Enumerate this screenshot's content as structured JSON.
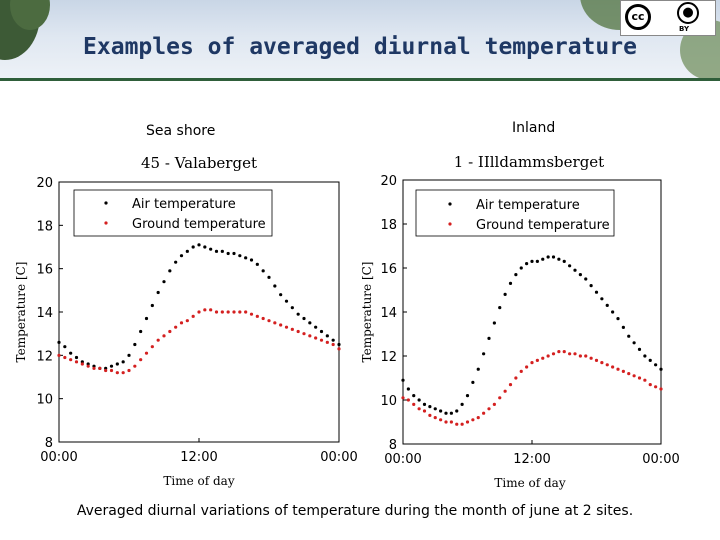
{
  "slide": {
    "title": "Examples of averaged diurnal temperature",
    "caption": "Averaged diurnal variations of temperature during the month of june at 2 sites.",
    "license_badge": {
      "icon": "cc-by-icon",
      "text": "BY"
    },
    "colors": {
      "title": "#1f3864",
      "banner_line": "#2f5e3a",
      "air": "#000000",
      "ground": "#d42020"
    }
  },
  "panels": [
    {
      "site_label": "Sea shore"
    },
    {
      "site_label": "Inland"
    }
  ],
  "chart_data": [
    {
      "type": "scatter",
      "title": "45 - Valaberget",
      "xlabel": "Time of day",
      "ylabel": "Temperature [C]",
      "xlim": [
        0,
        24
      ],
      "ylim": [
        8,
        20
      ],
      "x_ticks": [
        "00:00",
        "12:00",
        "00:00"
      ],
      "y_ticks": [
        "8",
        "10",
        "12",
        "14",
        "16",
        "18",
        "20"
      ],
      "legend_position": "top-left",
      "series": [
        {
          "name": "Air temperature",
          "color": "#000000",
          "x": [
            0,
            0.5,
            1,
            1.5,
            2,
            2.5,
            3,
            3.5,
            4,
            4.5,
            5,
            5.5,
            6,
            6.5,
            7,
            7.5,
            8,
            8.5,
            9,
            9.5,
            10,
            10.5,
            11,
            11.5,
            12,
            12.5,
            13,
            13.5,
            14,
            14.5,
            15,
            15.5,
            16,
            16.5,
            17,
            17.5,
            18,
            18.5,
            19,
            19.5,
            20,
            20.5,
            21,
            21.5,
            22,
            22.5,
            23,
            23.5,
            24
          ],
          "y": [
            12.6,
            12.4,
            12.1,
            11.9,
            11.7,
            11.6,
            11.5,
            11.4,
            11.4,
            11.5,
            11.6,
            11.7,
            12.0,
            12.5,
            13.1,
            13.7,
            14.3,
            14.9,
            15.4,
            15.9,
            16.3,
            16.6,
            16.8,
            17.0,
            17.1,
            17.0,
            16.9,
            16.8,
            16.8,
            16.7,
            16.7,
            16.6,
            16.5,
            16.4,
            16.2,
            15.9,
            15.6,
            15.2,
            14.8,
            14.5,
            14.2,
            13.9,
            13.7,
            13.5,
            13.3,
            13.1,
            12.9,
            12.7,
            12.5
          ]
        },
        {
          "name": "Ground temperature",
          "color": "#d42020",
          "x": [
            0,
            0.5,
            1,
            1.5,
            2,
            2.5,
            3,
            3.5,
            4,
            4.5,
            5,
            5.5,
            6,
            6.5,
            7,
            7.5,
            8,
            8.5,
            9,
            9.5,
            10,
            10.5,
            11,
            11.5,
            12,
            12.5,
            13,
            13.5,
            14,
            14.5,
            15,
            15.5,
            16,
            16.5,
            17,
            17.5,
            18,
            18.5,
            19,
            19.5,
            20,
            20.5,
            21,
            21.5,
            22,
            22.5,
            23,
            23.5,
            24
          ],
          "y": [
            12.0,
            11.9,
            11.8,
            11.7,
            11.6,
            11.5,
            11.4,
            11.4,
            11.3,
            11.3,
            11.2,
            11.2,
            11.3,
            11.5,
            11.8,
            12.1,
            12.4,
            12.7,
            12.9,
            13.1,
            13.3,
            13.5,
            13.6,
            13.8,
            14.0,
            14.1,
            14.1,
            14.0,
            14.0,
            14.0,
            14.0,
            14.0,
            14.0,
            13.9,
            13.8,
            13.7,
            13.6,
            13.5,
            13.4,
            13.3,
            13.2,
            13.1,
            13.0,
            12.9,
            12.8,
            12.7,
            12.6,
            12.5,
            12.3
          ]
        }
      ]
    },
    {
      "type": "scatter",
      "title": "1 - IIlldammsberget",
      "xlabel": "Time of day",
      "ylabel": "Temperature [C]",
      "xlim": [
        0,
        24
      ],
      "ylim": [
        8,
        20
      ],
      "x_ticks": [
        "00:00",
        "12:00",
        "00:00"
      ],
      "y_ticks": [
        "8",
        "10",
        "12",
        "14",
        "16",
        "18",
        "20"
      ],
      "legend_position": "top-left",
      "series": [
        {
          "name": "Air temperature",
          "color": "#000000",
          "x": [
            0,
            0.5,
            1,
            1.5,
            2,
            2.5,
            3,
            3.5,
            4,
            4.5,
            5,
            5.5,
            6,
            6.5,
            7,
            7.5,
            8,
            8.5,
            9,
            9.5,
            10,
            10.5,
            11,
            11.5,
            12,
            12.5,
            13,
            13.5,
            14,
            14.5,
            15,
            15.5,
            16,
            16.5,
            17,
            17.5,
            18,
            18.5,
            19,
            19.5,
            20,
            20.5,
            21,
            21.5,
            22,
            22.5,
            23,
            23.5,
            24
          ],
          "y": [
            10.9,
            10.5,
            10.2,
            10.0,
            9.8,
            9.7,
            9.6,
            9.5,
            9.4,
            9.4,
            9.5,
            9.8,
            10.2,
            10.8,
            11.4,
            12.1,
            12.8,
            13.5,
            14.2,
            14.8,
            15.3,
            15.7,
            16.0,
            16.2,
            16.3,
            16.3,
            16.4,
            16.5,
            16.5,
            16.4,
            16.3,
            16.1,
            15.9,
            15.7,
            15.5,
            15.2,
            14.9,
            14.6,
            14.3,
            14.0,
            13.7,
            13.3,
            12.9,
            12.6,
            12.3,
            12.0,
            11.8,
            11.6,
            11.4
          ]
        },
        {
          "name": "Ground temperature",
          "color": "#d42020",
          "x": [
            0,
            0.5,
            1,
            1.5,
            2,
            2.5,
            3,
            3.5,
            4,
            4.5,
            5,
            5.5,
            6,
            6.5,
            7,
            7.5,
            8,
            8.5,
            9,
            9.5,
            10,
            10.5,
            11,
            11.5,
            12,
            12.5,
            13,
            13.5,
            14,
            14.5,
            15,
            15.5,
            16,
            16.5,
            17,
            17.5,
            18,
            18.5,
            19,
            19.5,
            20,
            20.5,
            21,
            21.5,
            22,
            22.5,
            23,
            23.5,
            24
          ],
          "y": [
            10.1,
            10.0,
            9.8,
            9.6,
            9.5,
            9.3,
            9.2,
            9.1,
            9.0,
            9.0,
            8.9,
            8.9,
            9.0,
            9.1,
            9.2,
            9.4,
            9.6,
            9.8,
            10.1,
            10.4,
            10.7,
            11.0,
            11.3,
            11.5,
            11.7,
            11.8,
            11.9,
            12.0,
            12.1,
            12.2,
            12.2,
            12.1,
            12.1,
            12.0,
            12.0,
            11.9,
            11.8,
            11.7,
            11.6,
            11.5,
            11.4,
            11.3,
            11.2,
            11.1,
            11.0,
            10.9,
            10.7,
            10.6,
            10.5
          ]
        }
      ]
    }
  ]
}
